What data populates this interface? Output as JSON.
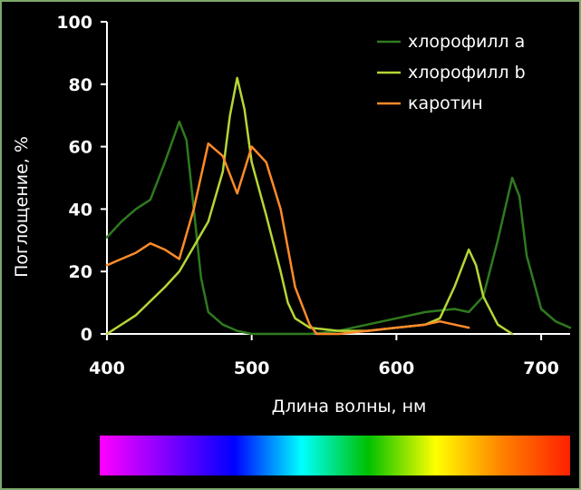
{
  "chart_data": {
    "type": "line",
    "xlabel": "Длина волны, нм",
    "ylabel": "Поглощение, %",
    "xlim": [
      400,
      720
    ],
    "ylim": [
      0,
      100
    ],
    "x_ticks": [
      "400",
      "500",
      "600",
      "700"
    ],
    "y_ticks": [
      "0",
      "20",
      "40",
      "60",
      "80",
      "100"
    ],
    "grid": false,
    "legend_position": "top-right",
    "series": [
      {
        "name": "хлорофилл a",
        "color": "#2f7a1f",
        "points": [
          [
            400,
            31
          ],
          [
            410,
            36
          ],
          [
            420,
            40
          ],
          [
            430,
            43
          ],
          [
            440,
            55
          ],
          [
            450,
            68
          ],
          [
            455,
            62
          ],
          [
            460,
            40
          ],
          [
            465,
            18
          ],
          [
            470,
            7
          ],
          [
            480,
            3
          ],
          [
            490,
            1
          ],
          [
            500,
            0
          ],
          [
            540,
            0
          ],
          [
            560,
            1
          ],
          [
            580,
            3
          ],
          [
            600,
            5
          ],
          [
            620,
            7
          ],
          [
            640,
            8
          ],
          [
            650,
            7
          ],
          [
            660,
            12
          ],
          [
            670,
            30
          ],
          [
            680,
            50
          ],
          [
            685,
            44
          ],
          [
            690,
            25
          ],
          [
            700,
            8
          ],
          [
            710,
            4
          ],
          [
            720,
            2
          ]
        ]
      },
      {
        "name": "хлорофилл b",
        "color": "#b5d636",
        "points": [
          [
            400,
            0
          ],
          [
            420,
            6
          ],
          [
            440,
            15
          ],
          [
            450,
            20
          ],
          [
            460,
            28
          ],
          [
            470,
            36
          ],
          [
            480,
            52
          ],
          [
            485,
            70
          ],
          [
            490,
            82
          ],
          [
            495,
            72
          ],
          [
            500,
            55
          ],
          [
            510,
            38
          ],
          [
            520,
            20
          ],
          [
            525,
            10
          ],
          [
            530,
            5
          ],
          [
            540,
            2
          ],
          [
            560,
            1
          ],
          [
            580,
            1
          ],
          [
            600,
            2
          ],
          [
            620,
            3
          ],
          [
            630,
            5
          ],
          [
            640,
            15
          ],
          [
            650,
            27
          ],
          [
            655,
            22
          ],
          [
            660,
            12
          ],
          [
            670,
            3
          ],
          [
            680,
            0
          ]
        ]
      },
      {
        "name": "каротин",
        "color": "#ff8a2a",
        "points": [
          [
            400,
            22
          ],
          [
            410,
            24
          ],
          [
            420,
            26
          ],
          [
            430,
            29
          ],
          [
            440,
            27
          ],
          [
            450,
            24
          ],
          [
            460,
            40
          ],
          [
            470,
            61
          ],
          [
            480,
            57
          ],
          [
            490,
            45
          ],
          [
            500,
            60
          ],
          [
            510,
            55
          ],
          [
            520,
            40
          ],
          [
            530,
            15
          ],
          [
            540,
            3
          ],
          [
            545,
            0
          ],
          [
            560,
            0
          ],
          [
            580,
            1
          ],
          [
            600,
            2
          ],
          [
            620,
            3
          ],
          [
            630,
            4
          ],
          [
            640,
            3
          ],
          [
            650,
            2
          ]
        ]
      }
    ],
    "spectrum_colors": [
      "#ff00ff",
      "#8000ff",
      "#0000ff",
      "#00ffff",
      "#00c000",
      "#ffff00",
      "#ff8000",
      "#ff2000"
    ]
  }
}
